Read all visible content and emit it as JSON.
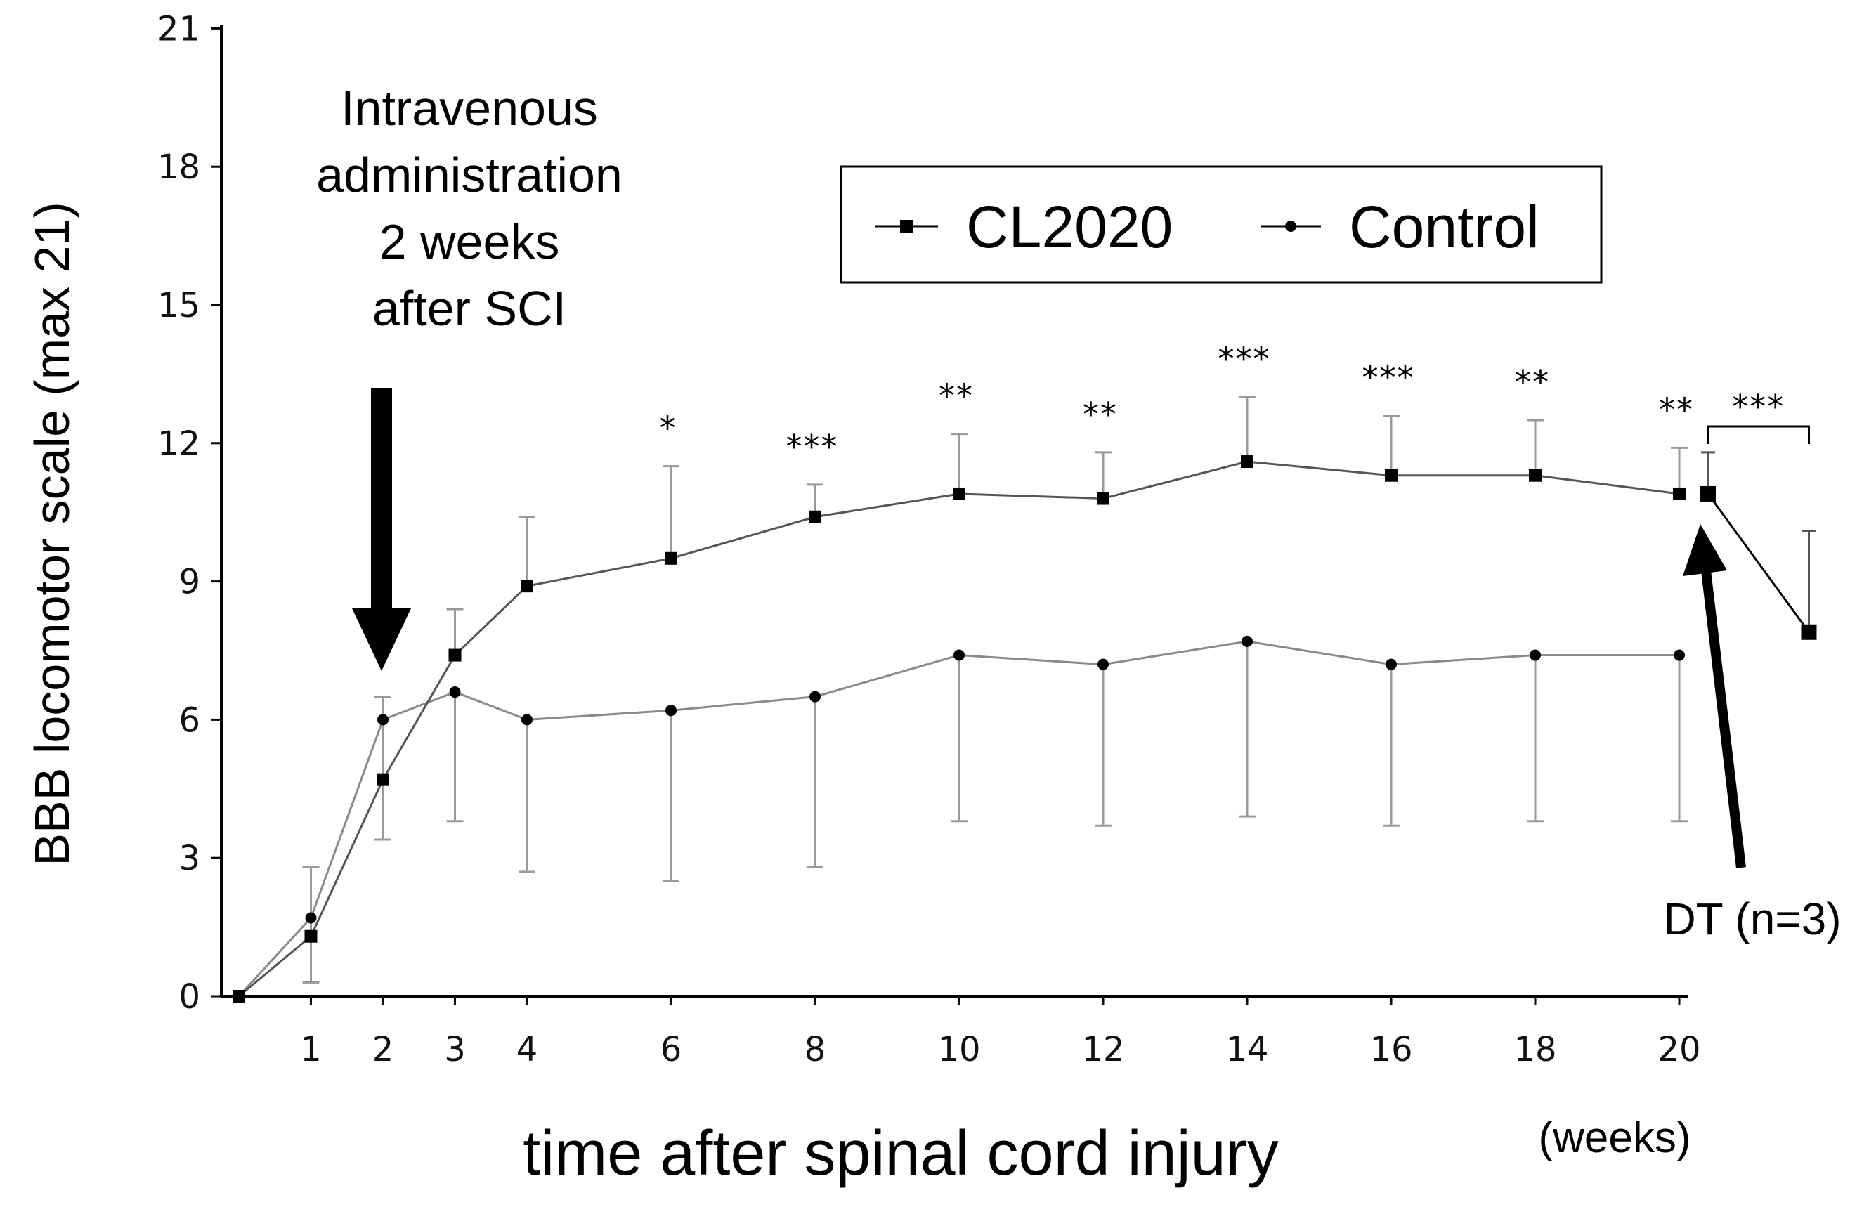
{
  "chart_data": {
    "type": "line",
    "ylabel": "BBB locomotor scale (max 21)",
    "xlabel": "time after spinal cord injury",
    "x_unit": "(weeks)",
    "ylim": [
      0,
      21
    ],
    "yticks": [
      "0",
      "3",
      "6",
      "9",
      "12",
      "15",
      "18",
      "21"
    ],
    "xticks": [
      "1",
      "2",
      "3",
      "4",
      "6",
      "8",
      "10",
      "12",
      "14",
      "16",
      "18",
      "20"
    ],
    "grid": false,
    "legend_position": "top-right",
    "x": [
      0,
      1,
      2,
      3,
      4,
      6,
      8,
      10,
      12,
      14,
      16,
      18,
      20
    ],
    "series": [
      {
        "name": "CL2020",
        "marker": "square",
        "values": [
          0,
          1.3,
          4.7,
          7.4,
          8.9,
          9.5,
          10.4,
          10.9,
          10.8,
          11.6,
          11.3,
          11.3,
          10.9
        ],
        "error_plus": [
          0,
          1.5,
          1.8,
          1.0,
          1.5,
          2.0,
          0.7,
          1.3,
          1.0,
          1.4,
          1.3,
          1.2,
          1.0
        ]
      },
      {
        "name": "Control",
        "marker": "circle",
        "values": [
          0,
          1.7,
          6.0,
          6.6,
          6.0,
          6.2,
          6.5,
          7.4,
          7.2,
          7.7,
          7.2,
          7.4,
          7.4
        ],
        "error_minus": [
          0,
          1.4,
          2.6,
          2.8,
          3.3,
          3.7,
          3.7,
          3.6,
          3.5,
          3.8,
          3.5,
          3.6,
          3.6
        ]
      }
    ],
    "dt_series": {
      "label": "DT (n=3)",
      "x": [
        20.4,
        21.8
      ],
      "values": [
        10.9,
        7.9
      ],
      "error_plus": [
        0.9,
        2.2
      ],
      "significance": "***"
    },
    "significance": [
      {
        "x": 6,
        "label": "*"
      },
      {
        "x": 8,
        "label": "***"
      },
      {
        "x": 10,
        "label": "**"
      },
      {
        "x": 12,
        "label": "**"
      },
      {
        "x": 14,
        "label": "***"
      },
      {
        "x": 16,
        "label": "***"
      },
      {
        "x": 18,
        "label": "**"
      },
      {
        "x": 20,
        "label": "**"
      }
    ],
    "annotation": {
      "lines": [
        "Intravenous",
        "administration",
        "2 weeks",
        "after SCI"
      ],
      "x": 2
    }
  },
  "colors": {
    "cl2020_line": "#555555",
    "control_line": "#8a8a8a",
    "error_bar": "#9a9a9a",
    "text": "#000000"
  }
}
